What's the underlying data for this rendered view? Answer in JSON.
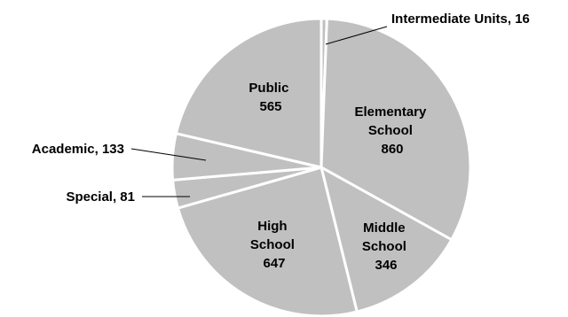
{
  "chart_data": {
    "type": "pie",
    "title": "",
    "slice_color": "#c0c0c0",
    "border_color": "#ffffff",
    "slices": [
      {
        "name": "Intermediate Units",
        "value": 16,
        "label_lines": [
          "Intermediate Units, 16"
        ]
      },
      {
        "name": "Elementary School",
        "value": 860,
        "label_lines": [
          "Elementary",
          "School",
          "860"
        ]
      },
      {
        "name": "Middle School",
        "value": 346,
        "label_lines": [
          "Middle",
          "School",
          "346"
        ]
      },
      {
        "name": "High School",
        "value": 647,
        "label_lines": [
          "High",
          "School",
          "647"
        ]
      },
      {
        "name": "Special",
        "value": 81,
        "label_lines": [
          "Special, 81"
        ]
      },
      {
        "name": "Academic",
        "value": 133,
        "label_lines": [
          "Academic, 133"
        ]
      },
      {
        "name": "Public",
        "value": 565,
        "label_lines": [
          "Public",
          "565"
        ]
      }
    ]
  }
}
